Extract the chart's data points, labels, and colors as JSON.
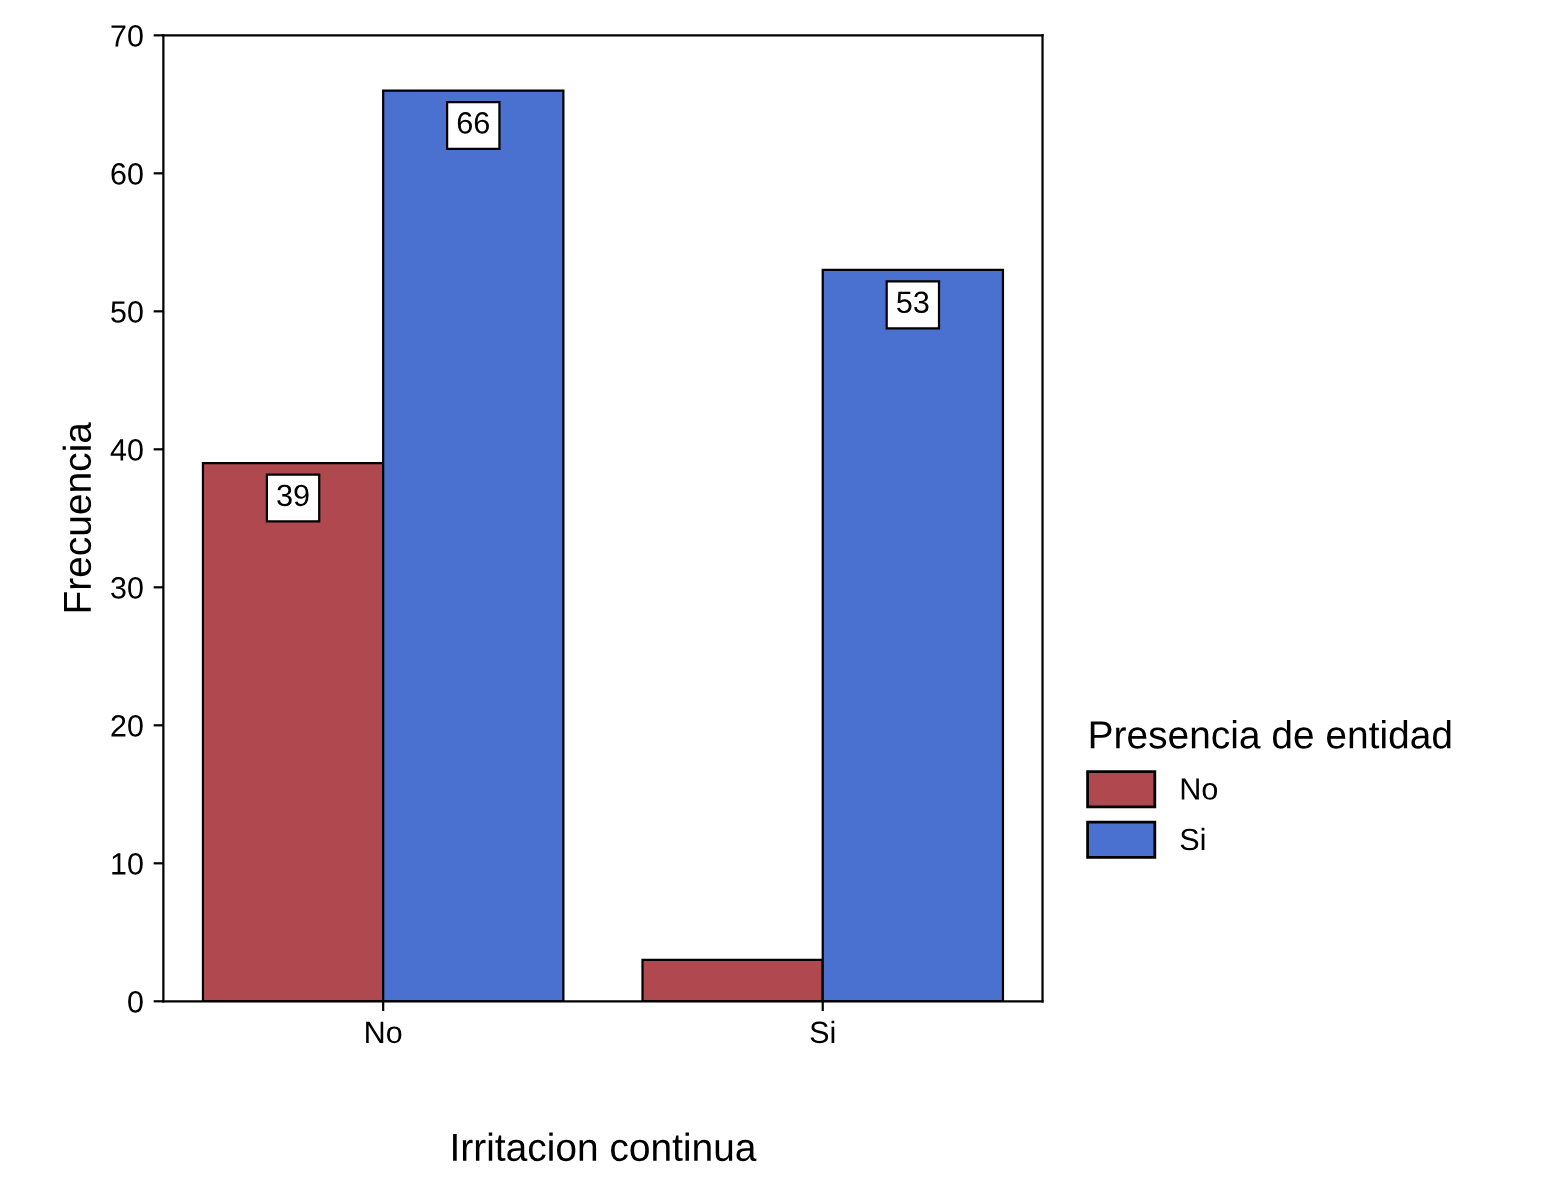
{
  "chart_data": {
    "type": "bar",
    "xlabel": "Irritacion continua",
    "ylabel": "Frecuencia",
    "legend_title": "Presencia de entidad",
    "categories": [
      "No",
      "Si"
    ],
    "series": [
      {
        "name": "No",
        "color": "#b0484f",
        "values": [
          39,
          3
        ],
        "value_labels": [
          "39",
          null
        ]
      },
      {
        "name": "Si",
        "color": "#4a70d0",
        "values": [
          66,
          53
        ],
        "value_labels": [
          "66",
          "53"
        ]
      }
    ],
    "ylim": [
      0,
      70
    ],
    "yticks": [
      0,
      10,
      20,
      30,
      40,
      50,
      60,
      70
    ],
    "grid": false,
    "legend": "right"
  }
}
